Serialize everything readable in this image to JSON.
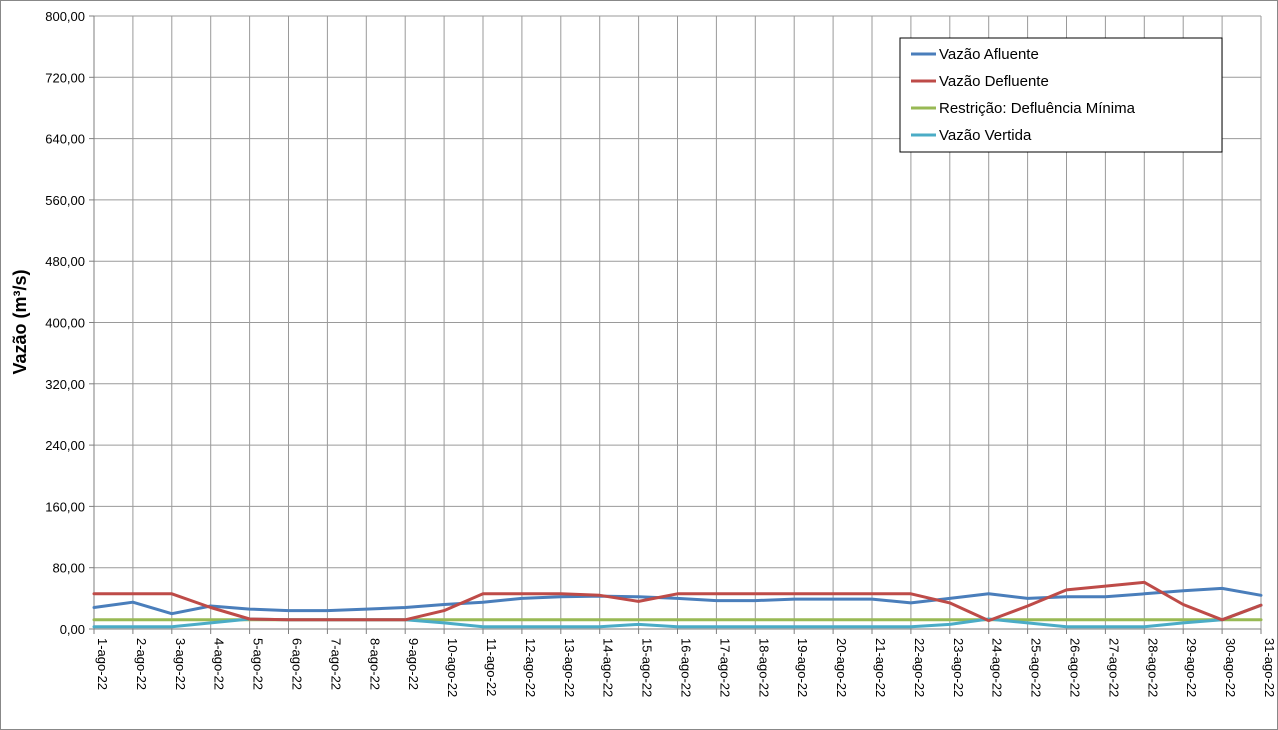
{
  "chart_data": {
    "type": "line",
    "ylabel": "Vazão (m³/s)",
    "ylim": [
      0,
      800
    ],
    "yticks": [
      "0,00",
      "80,00",
      "160,00",
      "240,00",
      "320,00",
      "400,00",
      "480,00",
      "560,00",
      "640,00",
      "720,00",
      "800,00"
    ],
    "categories": [
      "1-ago-22",
      "2-ago-22",
      "3-ago-22",
      "4-ago-22",
      "5-ago-22",
      "6-ago-22",
      "7-ago-22",
      "8-ago-22",
      "9-ago-22",
      "10-ago-22",
      "11-ago-22",
      "12-ago-22",
      "13-ago-22",
      "14-ago-22",
      "15-ago-22",
      "16-ago-22",
      "17-ago-22",
      "18-ago-22",
      "19-ago-22",
      "20-ago-22",
      "21-ago-22",
      "22-ago-22",
      "23-ago-22",
      "24-ago-22",
      "25-ago-22",
      "26-ago-22",
      "27-ago-22",
      "28-ago-22",
      "29-ago-22",
      "30-ago-22",
      "31-ago-22"
    ],
    "grid": true,
    "legend_position": "top-right",
    "series": [
      {
        "name": "Vazão Afluente",
        "color": "#4a7ebb",
        "values": [
          28,
          35,
          20,
          30,
          26,
          24,
          24,
          26,
          28,
          32,
          35,
          40,
          42,
          43,
          42,
          40,
          37,
          37,
          39,
          39,
          39,
          34,
          40,
          46,
          40,
          42,
          42,
          46,
          50,
          53,
          44
        ]
      },
      {
        "name": "Vazão Defluente",
        "color": "#be4b48",
        "values": [
          46,
          46,
          46,
          28,
          13,
          12,
          12,
          12,
          12,
          24,
          46,
          46,
          46,
          44,
          36,
          46,
          46,
          46,
          46,
          46,
          46,
          46,
          34,
          11,
          30,
          51,
          56,
          61,
          32,
          12,
          31
        ]
      },
      {
        "name": "Restrição: Defluência Mínima",
        "color": "#98b954",
        "values": [
          12,
          12,
          12,
          12,
          12,
          12,
          12,
          12,
          12,
          12,
          12,
          12,
          12,
          12,
          12,
          12,
          12,
          12,
          12,
          12,
          12,
          12,
          12,
          12,
          12,
          12,
          12,
          12,
          12,
          12,
          12
        ]
      },
      {
        "name": "Vazão Vertida",
        "color": "#4bacc6",
        "values": [
          3,
          3,
          3,
          8,
          13,
          12,
          12,
          12,
          12,
          8,
          3,
          3,
          3,
          3,
          6,
          3,
          3,
          3,
          3,
          3,
          3,
          3,
          6,
          13,
          8,
          3,
          3,
          3,
          8,
          12,
          31
        ]
      }
    ]
  }
}
